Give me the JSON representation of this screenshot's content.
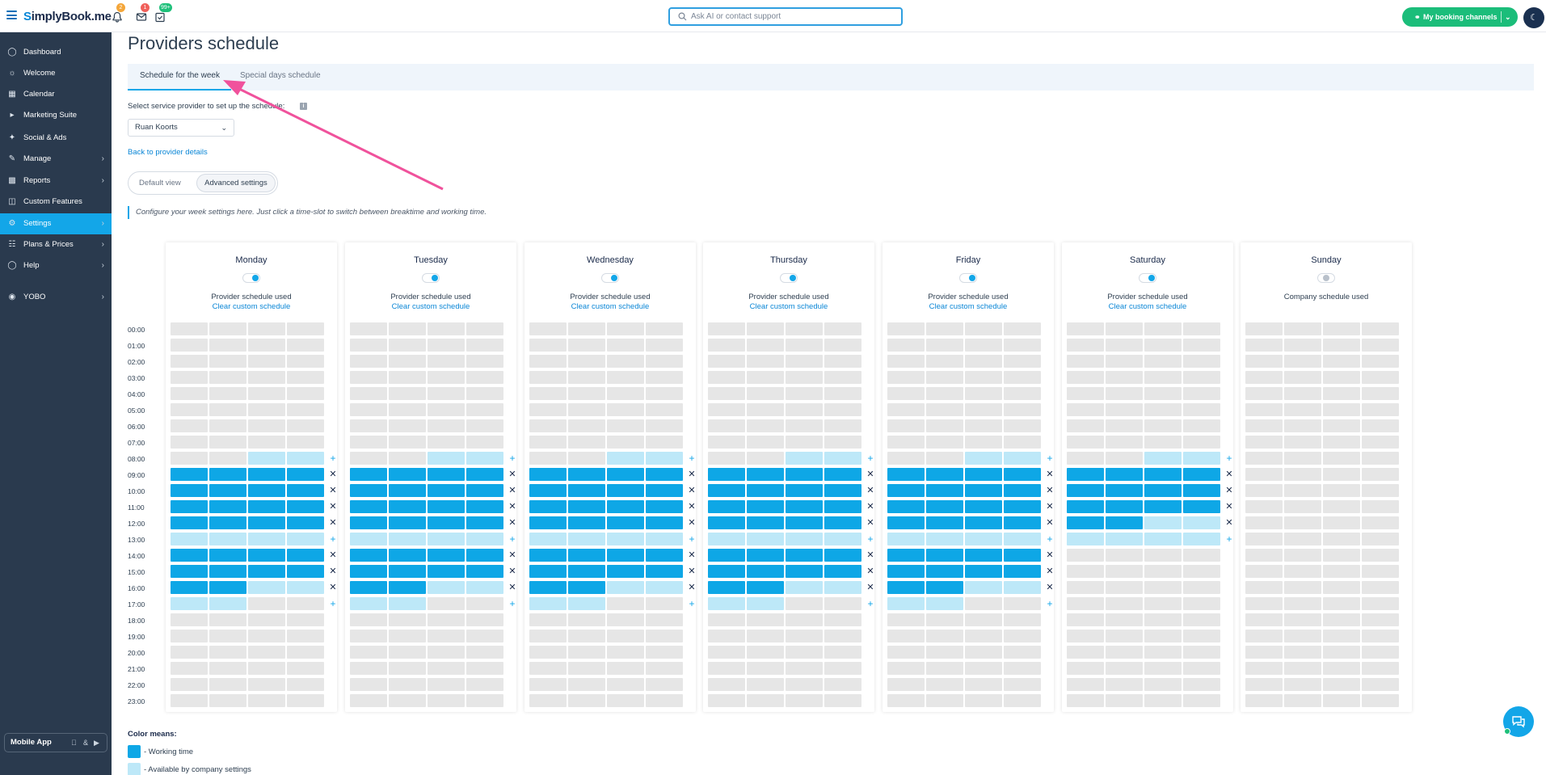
{
  "brand": {
    "logo_text": "SimplyBook.me",
    "logo_s": "S",
    "logo_rest": "implyBook.me"
  },
  "topbar": {
    "notifications_badge": "2",
    "messages_badge": "1",
    "tasks_badge": "99+",
    "search_placeholder": "Ask AI or contact support",
    "booking_channels_label": "My booking channels"
  },
  "sidebar": {
    "items": [
      {
        "label": "Dashboard",
        "icon": "dashboard-icon"
      },
      {
        "label": "Welcome",
        "icon": "bulb-icon"
      },
      {
        "label": "Calendar",
        "icon": "calendar-icon"
      },
      {
        "label": "Marketing Suite",
        "icon": "megaphone-icon"
      },
      {
        "label": "Social & Ads",
        "icon": "share-icon"
      },
      {
        "label": "Manage",
        "icon": "pencil-icon"
      },
      {
        "label": "Reports",
        "icon": "chart-icon"
      },
      {
        "label": "Custom Features",
        "icon": "puzzle-icon"
      },
      {
        "label": "Settings",
        "icon": "gear-icon"
      },
      {
        "label": "Plans & Prices",
        "icon": "plans-icon"
      },
      {
        "label": "Help",
        "icon": "help-icon"
      },
      {
        "label": "YOBO",
        "icon": "yobo-icon"
      }
    ],
    "mobile_app_label": "Mobile App",
    "mobile_app_sep": "&"
  },
  "page": {
    "title": "Providers schedule",
    "tab_week": "Schedule for the week",
    "tab_special": "Special days schedule",
    "select_label": "Select service provider to set up the schedule:",
    "info_glyph": "i",
    "provider_selected": "Ruan Koorts",
    "back_link": "Back to provider details",
    "view_default": "Default view",
    "view_advanced": "Advanced settings",
    "hint": "Configure your week settings here. Just click a time-slot to switch between breaktime and working time."
  },
  "times": [
    "00:00",
    "01:00",
    "02:00",
    "03:00",
    "04:00",
    "05:00",
    "06:00",
    "07:00",
    "08:00",
    "09:00",
    "10:00",
    "11:00",
    "12:00",
    "13:00",
    "14:00",
    "15:00",
    "16:00",
    "17:00",
    "18:00",
    "19:00",
    "20:00",
    "21:00",
    "22:00",
    "23:00"
  ],
  "days": [
    {
      "name": "Monday",
      "status": "Provider schedule used",
      "clear": "Clear custom schedule",
      "enabled": true
    },
    {
      "name": "Tuesday",
      "status": "Provider schedule used",
      "clear": "Clear custom schedule",
      "enabled": true
    },
    {
      "name": "Wednesday",
      "status": "Provider schedule used",
      "clear": "Clear custom schedule",
      "enabled": true
    },
    {
      "name": "Thursday",
      "status": "Provider schedule used",
      "clear": "Clear custom schedule",
      "enabled": true
    },
    {
      "name": "Friday",
      "status": "Provider schedule used",
      "clear": "Clear custom schedule",
      "enabled": true
    },
    {
      "name": "Saturday",
      "status": "Provider schedule used",
      "clear": "Clear custom schedule",
      "enabled": true
    },
    {
      "name": "Sunday",
      "status": "Company schedule used",
      "clear": "",
      "enabled": false
    }
  ],
  "legend": {
    "title": "Color means:",
    "working": "- Working time",
    "available": "- Available by company settings",
    "working_color": "#0ea7e6",
    "available_color": "#bde8f8"
  },
  "colors": {
    "accent": "#13a6e8",
    "sidebar": "#2a3a4e",
    "green": "#1bbd7a",
    "annotation_arrow": "#f0529c"
  }
}
